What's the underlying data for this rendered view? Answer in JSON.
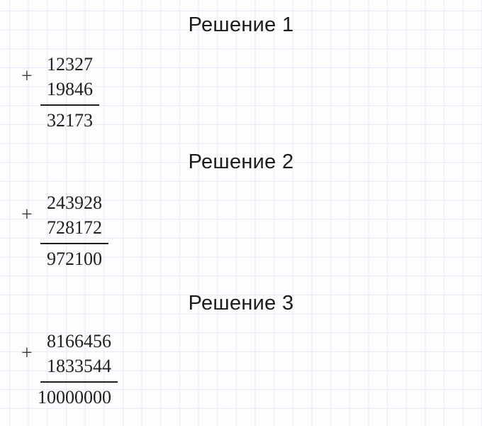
{
  "canvas": {
    "background_color": "#fdfdfe",
    "grid_line_color": "#e3eaf7",
    "text_color": "#1f1f1f"
  },
  "solutions": [
    {
      "title": "Решение 1",
      "operator": "+",
      "addend_top": "12327",
      "addend_bottom": "19846",
      "result": "32173"
    },
    {
      "title": "Решение 2",
      "operator": "+",
      "addend_top": "243928",
      "addend_bottom": "728172",
      "result": "972100"
    },
    {
      "title": "Решение 3",
      "operator": "+",
      "addend_top": "8166456",
      "addend_bottom": "1833544",
      "result": "10000000"
    }
  ]
}
